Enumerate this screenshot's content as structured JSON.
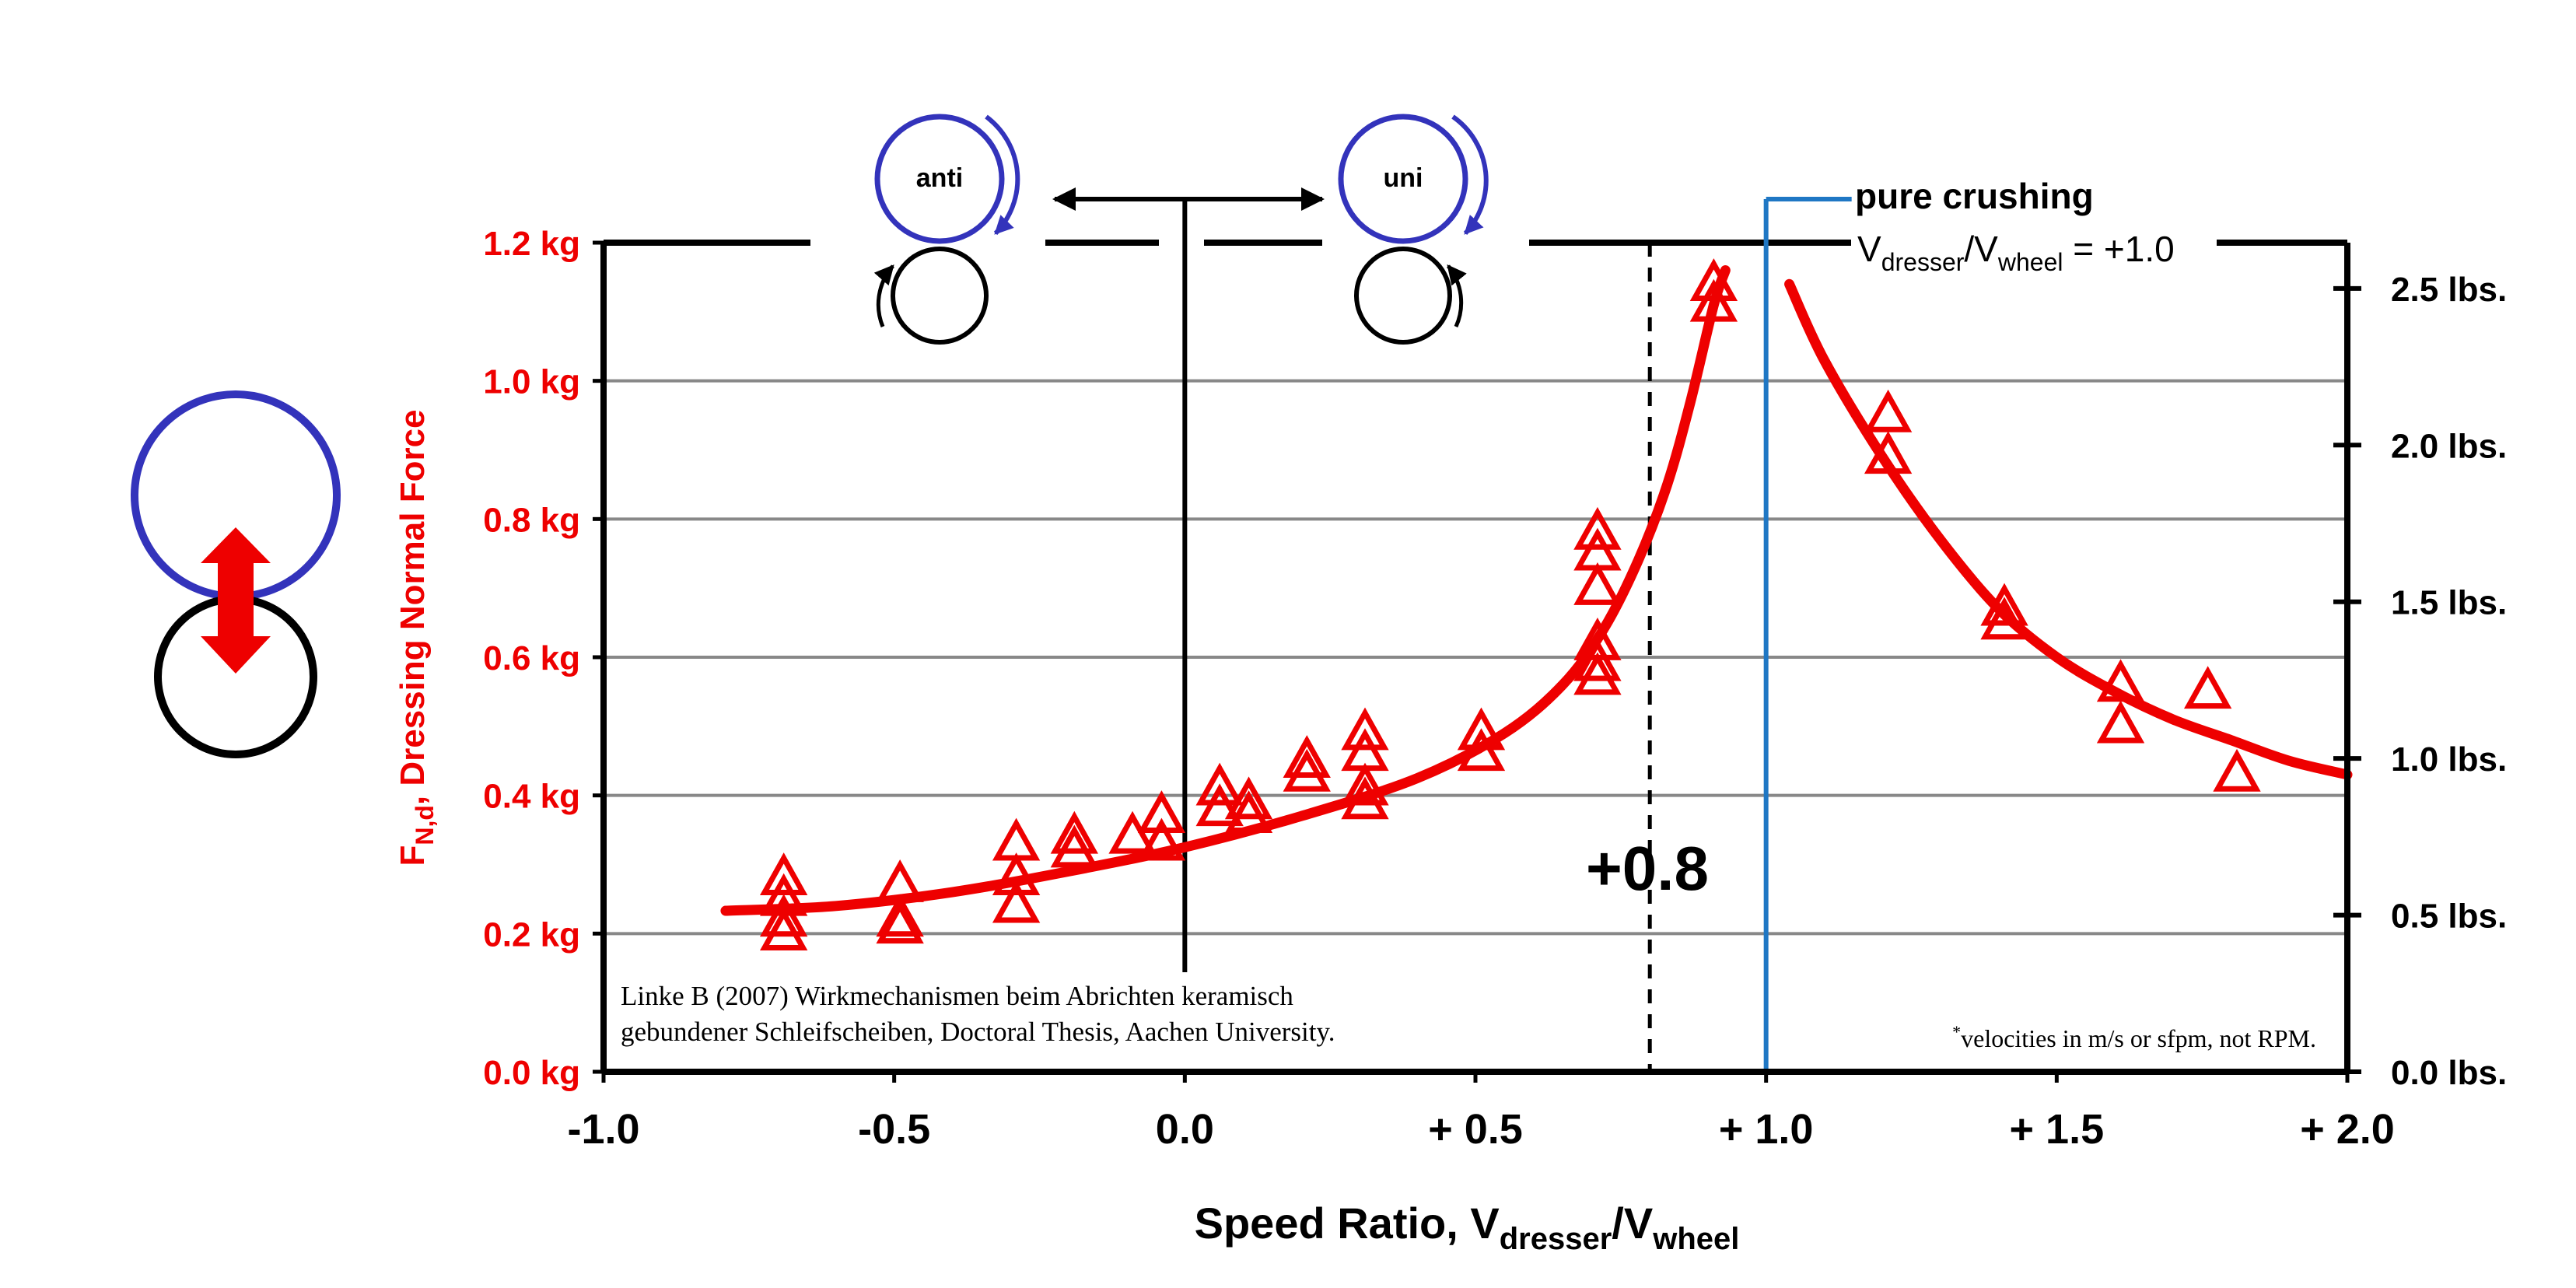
{
  "chart_data": {
    "type": "scatter",
    "xlabel": {
      "main": "Speed Ratio, V",
      "sub1": "dresser",
      "mid": "/V",
      "sub2": "wheel"
    },
    "ylabel_left": {
      "main": "F",
      "sub": "N,d",
      "rest": ", Dressing Normal Force"
    },
    "xlim": [
      -1.0,
      2.0
    ],
    "ylim_left": [
      0.0,
      1.2
    ],
    "ylim_right": [
      0.0,
      2.646
    ],
    "x_ticks": [
      {
        "value": -1.0,
        "label": "-1.0"
      },
      {
        "value": -0.5,
        "label": "-0.5"
      },
      {
        "value": 0.0,
        "label": "0.0"
      },
      {
        "value": 0.5,
        "label": "+ 0.5"
      },
      {
        "value": 1.0,
        "label": "+ 1.0"
      },
      {
        "value": 1.5,
        "label": "+ 1.5"
      },
      {
        "value": 2.0,
        "label": "+ 2.0"
      }
    ],
    "y_ticks_left": [
      {
        "value": 0.0,
        "label": "0.0 kg"
      },
      {
        "value": 0.2,
        "label": "0.2 kg"
      },
      {
        "value": 0.4,
        "label": "0.4 kg"
      },
      {
        "value": 0.6,
        "label": "0.6 kg"
      },
      {
        "value": 0.8,
        "label": "0.8 kg"
      },
      {
        "value": 1.0,
        "label": "1.0 kg"
      },
      {
        "value": 1.2,
        "label": "1.2 kg"
      }
    ],
    "y_ticks_right": [
      {
        "value": 0.0,
        "label": "0.0 lbs."
      },
      {
        "value": 0.5,
        "label": "0.5 lbs."
      },
      {
        "value": 1.0,
        "label": "1.0 lbs."
      },
      {
        "value": 1.5,
        "label": "1.5 lbs."
      },
      {
        "value": 2.0,
        "label": "2.0 lbs."
      },
      {
        "value": 2.5,
        "label": "2.5 lbs."
      }
    ],
    "grid": true,
    "points": [
      [
        -0.69,
        0.28
      ],
      [
        -0.69,
        0.25
      ],
      [
        -0.69,
        0.22
      ],
      [
        -0.69,
        0.2
      ],
      [
        -0.49,
        0.27
      ],
      [
        -0.49,
        0.22
      ],
      [
        -0.49,
        0.21
      ],
      [
        -0.29,
        0.33
      ],
      [
        -0.29,
        0.28
      ],
      [
        -0.29,
        0.24
      ],
      [
        -0.19,
        0.34
      ],
      [
        -0.19,
        0.32
      ],
      [
        -0.09,
        0.34
      ],
      [
        -0.04,
        0.37
      ],
      [
        -0.04,
        0.33
      ],
      [
        0.06,
        0.41
      ],
      [
        0.06,
        0.38
      ],
      [
        0.11,
        0.39
      ],
      [
        0.11,
        0.37
      ],
      [
        0.21,
        0.45
      ],
      [
        0.21,
        0.43
      ],
      [
        0.31,
        0.49
      ],
      [
        0.31,
        0.46
      ],
      [
        0.31,
        0.41
      ],
      [
        0.31,
        0.39
      ],
      [
        0.51,
        0.49
      ],
      [
        0.51,
        0.46
      ],
      [
        0.71,
        0.78
      ],
      [
        0.71,
        0.75
      ],
      [
        0.71,
        0.7
      ],
      [
        0.71,
        0.62
      ],
      [
        0.71,
        0.59
      ],
      [
        0.71,
        0.57
      ],
      [
        0.91,
        1.14
      ],
      [
        0.91,
        1.11
      ],
      [
        1.21,
        0.95
      ],
      [
        1.21,
        0.89
      ],
      [
        1.41,
        0.67
      ],
      [
        1.41,
        0.65
      ],
      [
        1.61,
        0.56
      ],
      [
        1.61,
        0.5
      ],
      [
        1.76,
        0.55
      ],
      [
        1.81,
        0.43
      ]
    ],
    "fit_left": [
      [
        -0.79,
        0.233
      ],
      [
        -0.6,
        0.24
      ],
      [
        -0.4,
        0.26
      ],
      [
        -0.2,
        0.29
      ],
      [
        0.0,
        0.325
      ],
      [
        0.2,
        0.37
      ],
      [
        0.4,
        0.425
      ],
      [
        0.55,
        0.49
      ],
      [
        0.65,
        0.56
      ],
      [
        0.72,
        0.64
      ],
      [
        0.78,
        0.74
      ],
      [
        0.83,
        0.85
      ],
      [
        0.87,
        0.97
      ],
      [
        0.91,
        1.11
      ],
      [
        0.93,
        1.16
      ]
    ],
    "fit_right": [
      [
        1.04,
        1.14
      ],
      [
        1.1,
        1.03
      ],
      [
        1.2,
        0.89
      ],
      [
        1.3,
        0.77
      ],
      [
        1.4,
        0.67
      ],
      [
        1.5,
        0.6
      ],
      [
        1.6,
        0.55
      ],
      [
        1.7,
        0.51
      ],
      [
        1.8,
        0.48
      ],
      [
        1.9,
        0.45
      ],
      [
        2.0,
        0.43
      ]
    ],
    "vlines": [
      {
        "x": 0.0,
        "style": "solid"
      },
      {
        "x": 0.8,
        "style": "dashed"
      },
      {
        "x": 1.0,
        "style": "blue"
      }
    ],
    "annotations": {
      "label_08": "+0.8",
      "pure_crushing": "pure crushing",
      "ratio_v": "V",
      "ratio_sub1": "dresser",
      "ratio_mid": "/V",
      "ratio_sub2": "wheel",
      "ratio_eq": " = +1.0",
      "anti": "anti",
      "uni": "uni",
      "citation_line1": "Linke B (2007) Wirkmechanismen beim Abrichten keramisch",
      "citation_line2": "gebundener Schleifscheiben, Doctoral Thesis, Aachen University.",
      "footnote_star": "*",
      "footnote_text": "velocities in m/s or sfpm, not RPM."
    },
    "colors": {
      "data": "#ee0000",
      "wheel": "#3333bb",
      "blue_line": "#1f77c4",
      "grid": "#888888",
      "axis": "#000000"
    }
  }
}
